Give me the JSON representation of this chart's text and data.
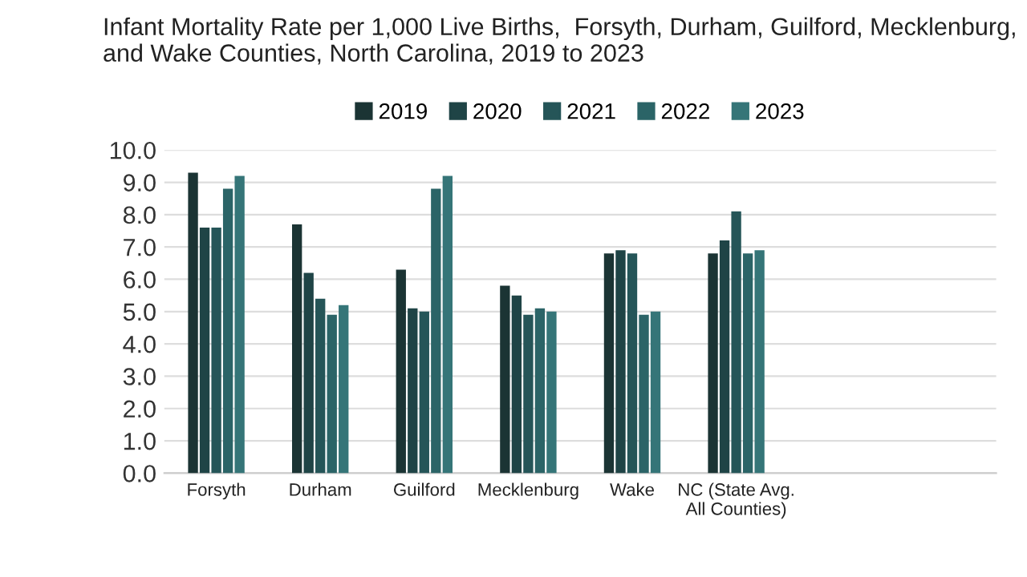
{
  "chart_data": {
    "type": "bar",
    "title": "Infant Mortality Rate per 1,000 Live Births,  Forsyth, Durham, Guilford, Mecklenburg,  and Wake Counties, North Carolina, 2019 to 2023",
    "categories": [
      "Forsyth",
      "Durham",
      "Guilford",
      "Mecklenburg",
      "Wake",
      "NC (State Avg. All Counties)",
      null,
      null
    ],
    "series": [
      {
        "name": "2019",
        "color": "#1b3434",
        "values": [
          9.3,
          7.7,
          6.3,
          5.8,
          6.8,
          6.8,
          null,
          null
        ]
      },
      {
        "name": "2020",
        "color": "#1f4446",
        "values": [
          7.6,
          6.2,
          5.1,
          5.5,
          6.9,
          7.2,
          null,
          null
        ]
      },
      {
        "name": "2021",
        "color": "#255558",
        "values": [
          7.6,
          5.4,
          5.0,
          4.9,
          6.8,
          8.1,
          null,
          null
        ]
      },
      {
        "name": "2022",
        "color": "#2b6467",
        "values": [
          8.8,
          4.9,
          8.8,
          5.1,
          4.9,
          6.8,
          null,
          null
        ]
      },
      {
        "name": "2023",
        "color": "#357578",
        "values": [
          9.2,
          5.2,
          9.2,
          5.0,
          5.0,
          6.9,
          null,
          null
        ]
      }
    ],
    "ylim": [
      0,
      10
    ],
    "yticks": [
      {
        "value": 0,
        "label": "0.0"
      },
      {
        "value": 1,
        "label": "1.0"
      },
      {
        "value": 2,
        "label": "2.0"
      },
      {
        "value": 3,
        "label": "3.0"
      },
      {
        "value": 4,
        "label": "4.0"
      },
      {
        "value": 5,
        "label": "5.0"
      },
      {
        "value": 6,
        "label": "6.0"
      },
      {
        "value": 7,
        "label": "7.0"
      },
      {
        "value": 8,
        "label": "8.0"
      },
      {
        "value": 9,
        "label": "9.0"
      },
      {
        "value": 10,
        "label": "10.0"
      }
    ],
    "grid": "y",
    "legend": "top"
  }
}
